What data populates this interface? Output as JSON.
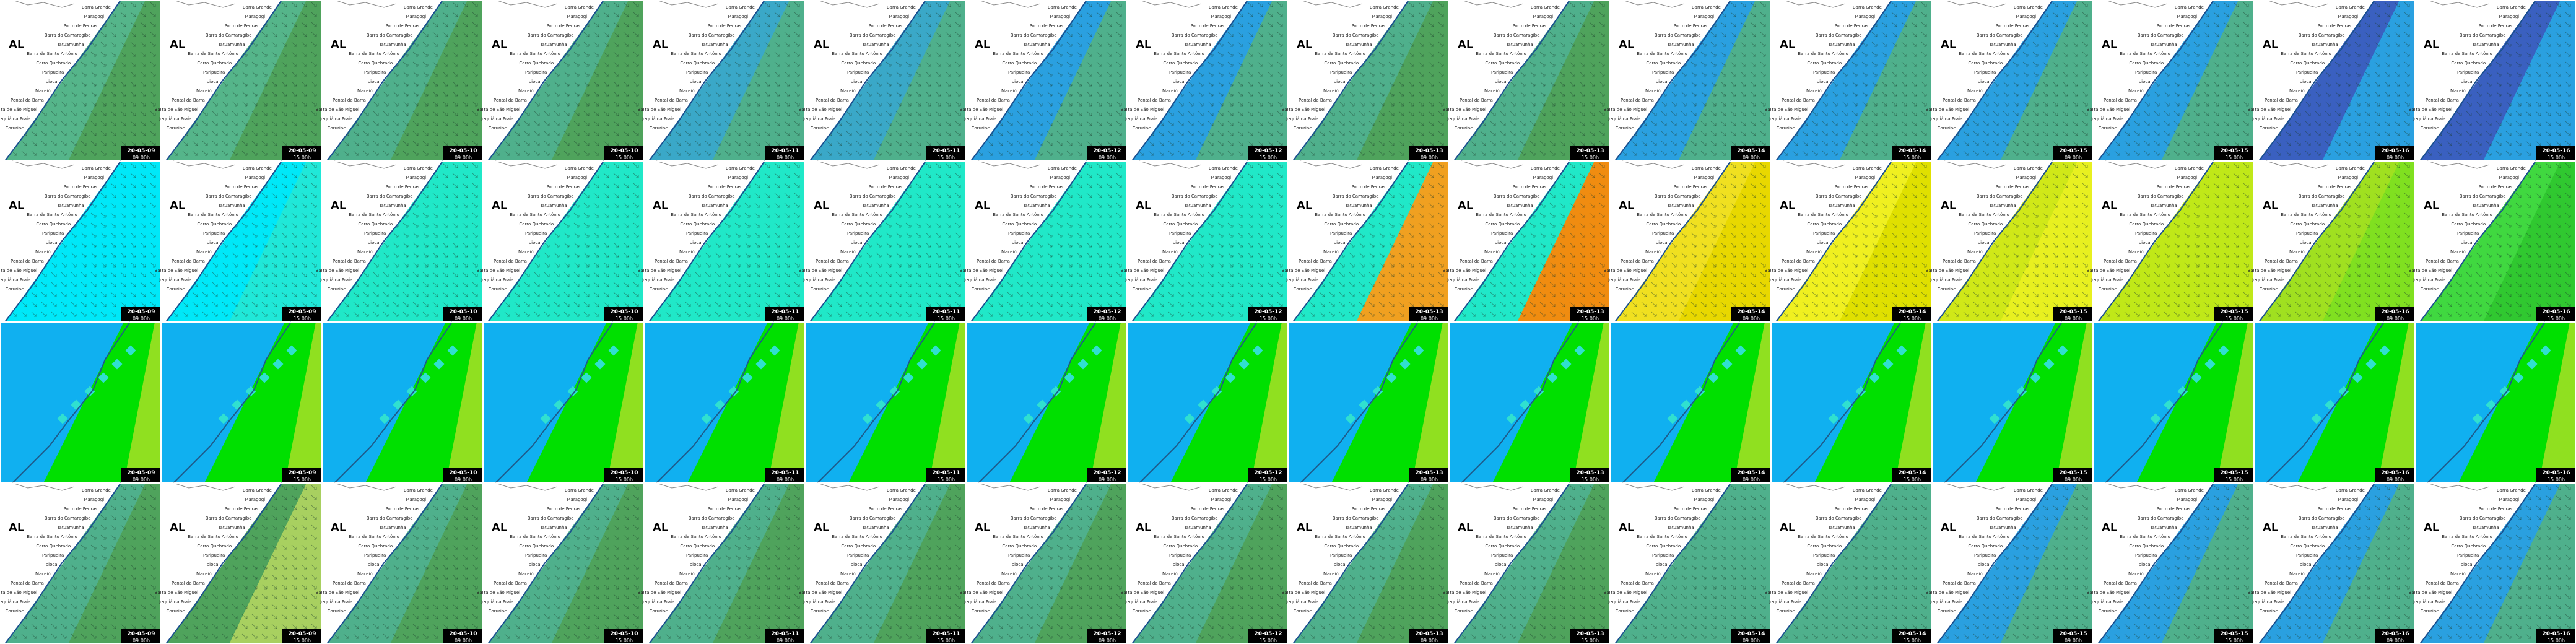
{
  "state": "AL",
  "places": [
    "Barra Grande",
    "Maragogi",
    "Porto de Pedras",
    "Barra do Camaragibe",
    "Tatuamunha",
    "Barra de Santo Antônio",
    "Carro Quebrado",
    "Paripueira",
    "Ipioca",
    "Maceió",
    "Pontal da Barra",
    "Barra de São Miguel",
    "Jequiá da Praia",
    "Coruripe"
  ],
  "rows": [
    {
      "tiles": [
        {
          "date": "20-05-09",
          "time": "09:00h",
          "colors": [
            "#55b58a",
            "#4fa35c"
          ]
        },
        {
          "date": "20-05-09",
          "time": "15:00h",
          "colors": [
            "#55b58a",
            "#4fa35c"
          ]
        },
        {
          "date": "20-05-10",
          "time": "09:00h",
          "colors": [
            "#4fb08c",
            "#4fa35c"
          ]
        },
        {
          "date": "20-05-10",
          "time": "15:00h",
          "colors": [
            "#4fb08c",
            "#4fa35c"
          ]
        },
        {
          "date": "20-05-11",
          "time": "09:00h",
          "colors": [
            "#3aa8c8",
            "#4fb08c"
          ]
        },
        {
          "date": "20-05-11",
          "time": "15:00h",
          "colors": [
            "#3aa8c8",
            "#4fb08c"
          ]
        },
        {
          "date": "20-05-12",
          "time": "09:00h",
          "colors": [
            "#2aa0e0",
            "#4fb08c"
          ]
        },
        {
          "date": "20-05-12",
          "time": "15:00h",
          "colors": [
            "#2aa0e0",
            "#4fb08c"
          ]
        },
        {
          "date": "20-05-13",
          "time": "09:00h",
          "colors": [
            "#4fb08c",
            "#4fa35c"
          ]
        },
        {
          "date": "20-05-13",
          "time": "15:00h",
          "colors": [
            "#4fb08c",
            "#4fa35c"
          ]
        },
        {
          "date": "20-05-14",
          "time": "09:00h",
          "colors": [
            "#2aa0e0",
            "#4fb08c"
          ]
        },
        {
          "date": "20-05-14",
          "time": "15:00h",
          "colors": [
            "#2aa0e0",
            "#4fb08c"
          ]
        },
        {
          "date": "20-05-15",
          "time": "09:00h",
          "colors": [
            "#2aa0e0",
            "#4fb08c"
          ]
        },
        {
          "date": "20-05-15",
          "time": "15:00h",
          "colors": [
            "#2aa0e0",
            "#4fb08c"
          ]
        },
        {
          "date": "20-05-16",
          "time": "09:00h",
          "colors": [
            "#3a60c0",
            "#2aa0e0"
          ]
        },
        {
          "date": "20-05-16",
          "time": "15:00h",
          "colors": [
            "#3a60c0",
            "#2aa0e0"
          ]
        }
      ]
    },
    {
      "tiles": [
        {
          "date": "20-05-09",
          "time": "09:00h",
          "colors": [
            "#00e8f8",
            "#00e8f8"
          ]
        },
        {
          "date": "20-05-09",
          "time": "15:00h",
          "colors": [
            "#00e8f8",
            "#20e8d8"
          ]
        },
        {
          "date": "20-05-10",
          "time": "09:00h",
          "colors": [
            "#20e8c8",
            "#20e8c8"
          ]
        },
        {
          "date": "20-05-10",
          "time": "15:00h",
          "colors": [
            "#20e8c8",
            "#20e8c8"
          ]
        },
        {
          "date": "20-05-11",
          "time": "09:00h",
          "colors": [
            "#20e8c8",
            "#20e8c8"
          ]
        },
        {
          "date": "20-05-11",
          "time": "15:00h",
          "colors": [
            "#20e8c8",
            "#20e8c8"
          ]
        },
        {
          "date": "20-05-12",
          "time": "09:00h",
          "colors": [
            "#20e8c8",
            "#20e8c8"
          ]
        },
        {
          "date": "20-05-12",
          "time": "15:00h",
          "colors": [
            "#20e8c8",
            "#20e8c8"
          ]
        },
        {
          "date": "20-05-13",
          "time": "09:00h",
          "colors": [
            "#20e8c8",
            "#f0a020"
          ]
        },
        {
          "date": "20-05-13",
          "time": "15:00h",
          "colors": [
            "#20e8c8",
            "#f08c10"
          ]
        },
        {
          "date": "20-05-14",
          "time": "09:00h",
          "colors": [
            "#f0e020",
            "#e8d800"
          ]
        },
        {
          "date": "20-05-14",
          "time": "15:00h",
          "colors": [
            "#f0f020",
            "#e0e000"
          ]
        },
        {
          "date": "20-05-15",
          "time": "09:00h",
          "colors": [
            "#d0e818",
            "#e8f020"
          ]
        },
        {
          "date": "20-05-15",
          "time": "15:00h",
          "colors": [
            "#c0e818",
            "#c0e818"
          ]
        },
        {
          "date": "20-05-16",
          "time": "09:00h",
          "colors": [
            "#a0e020",
            "#80e020"
          ]
        },
        {
          "date": "20-05-16",
          "time": "15:00h",
          "colors": [
            "#40d840",
            "#30c830"
          ]
        }
      ]
    },
    {
      "tiles": [
        {
          "date": "20-05-09",
          "time": "09:00h",
          "colors": [
            "#10b0f0",
            "#00e000",
            "#90e020"
          ]
        },
        {
          "date": "20-05-09",
          "time": "15:00h",
          "colors": [
            "#10b0f0",
            "#00e000",
            "#90e020"
          ]
        },
        {
          "date": "20-05-10",
          "time": "09:00h",
          "colors": [
            "#10b0f0",
            "#00e000",
            "#90e020"
          ]
        },
        {
          "date": "20-05-10",
          "time": "15:00h",
          "colors": [
            "#10b0f0",
            "#00e000",
            "#90e020"
          ]
        },
        {
          "date": "20-05-11",
          "time": "09:00h",
          "colors": [
            "#10b0f0",
            "#00e000",
            "#90e020"
          ]
        },
        {
          "date": "20-05-11",
          "time": "15:00h",
          "colors": [
            "#10b0f0",
            "#00e000",
            "#90e020"
          ]
        },
        {
          "date": "20-05-12",
          "time": "09:00h",
          "colors": [
            "#10b0f0",
            "#00e000",
            "#90e020"
          ]
        },
        {
          "date": "20-05-12",
          "time": "15:00h",
          "colors": [
            "#10b0f0",
            "#00e000",
            "#90e020"
          ]
        },
        {
          "date": "20-05-13",
          "time": "09:00h",
          "colors": [
            "#10b0f0",
            "#00e000",
            "#90e020"
          ]
        },
        {
          "date": "20-05-13",
          "time": "15:00h",
          "colors": [
            "#10b0f0",
            "#00e000",
            "#90e020"
          ]
        },
        {
          "date": "20-05-14",
          "time": "09:00h",
          "colors": [
            "#10b0f0",
            "#00e000",
            "#90e020"
          ]
        },
        {
          "date": "20-05-14",
          "time": "15:00h",
          "colors": [
            "#10b0f0",
            "#00e000",
            "#90e020"
          ]
        },
        {
          "date": "20-05-15",
          "time": "09:00h",
          "colors": [
            "#10b0f0",
            "#00e000",
            "#90e020"
          ]
        },
        {
          "date": "20-05-15",
          "time": "15:00h",
          "colors": [
            "#10b0f0",
            "#00e000",
            "#90e020"
          ]
        },
        {
          "date": "20-05-16",
          "time": "09:00h",
          "colors": [
            "#10b0f0",
            "#00e000",
            "#90e020"
          ]
        },
        {
          "date": "20-05-16",
          "time": "15:00h",
          "colors": [
            "#10b0f0",
            "#00e000",
            "#90e020"
          ]
        }
      ]
    },
    {
      "tiles": [
        {
          "date": "20-05-09",
          "time": "09:00h",
          "colors": [
            "#4fb08c",
            "#4fa35c"
          ]
        },
        {
          "date": "20-05-09",
          "time": "15:00h",
          "colors": [
            "#4fa35c",
            "#a8d060"
          ]
        },
        {
          "date": "20-05-10",
          "time": "09:00h",
          "colors": [
            "#4fb08c",
            "#4fa35c"
          ]
        },
        {
          "date": "20-05-10",
          "time": "15:00h",
          "colors": [
            "#4fb08c",
            "#4fa35c"
          ]
        },
        {
          "date": "20-05-11",
          "time": "09:00h",
          "colors": [
            "#4fb08c",
            "#4fa35c"
          ]
        },
        {
          "date": "20-05-11",
          "time": "15:00h",
          "colors": [
            "#4fb08c",
            "#4fa35c"
          ]
        },
        {
          "date": "20-05-12",
          "time": "09:00h",
          "colors": [
            "#4fb08c",
            "#4fa35c"
          ]
        },
        {
          "date": "20-05-12",
          "time": "15:00h",
          "colors": [
            "#4fb08c",
            "#4fa35c"
          ]
        },
        {
          "date": "20-05-13",
          "time": "09:00h",
          "colors": [
            "#4fb08c",
            "#4fa35c"
          ]
        },
        {
          "date": "20-05-13",
          "time": "15:00h",
          "colors": [
            "#4fb08c",
            "#4fa35c"
          ]
        },
        {
          "date": "20-05-14",
          "time": "09:00h",
          "colors": [
            "#4fb08c",
            "#4fb08c"
          ]
        },
        {
          "date": "20-05-14",
          "time": "15:00h",
          "colors": [
            "#4fb08c",
            "#4fb08c"
          ]
        },
        {
          "date": "20-05-15",
          "time": "09:00h",
          "colors": [
            "#2aa0e0",
            "#4fb08c"
          ]
        },
        {
          "date": "20-05-15",
          "time": "15:00h",
          "colors": [
            "#2aa0e0",
            "#4fb08c"
          ]
        },
        {
          "date": "20-05-16",
          "time": "09:00h",
          "colors": [
            "#2aa0e0",
            "#4fb08c"
          ]
        },
        {
          "date": "20-05-16",
          "time": "15:00h",
          "colors": [
            "#2aa0e0",
            "#4fb08c"
          ]
        }
      ]
    }
  ]
}
